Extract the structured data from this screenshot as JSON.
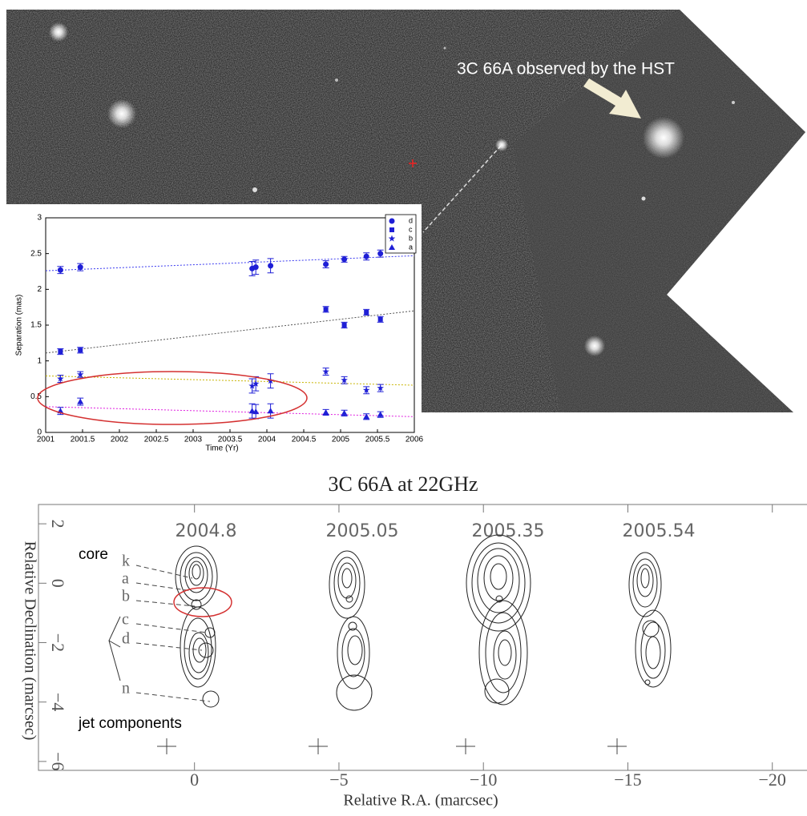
{
  "image": {
    "annotation": "3C 66A observed by the HST"
  },
  "chart_data": [
    {
      "type": "scatter",
      "xlabel": "Time (Yr)",
      "ylabel": "Separation (mas)",
      "xlim": [
        2001,
        2006
      ],
      "xticks": [
        2001,
        2001.5,
        2002,
        2002.5,
        2003,
        2003.5,
        2004,
        2004.5,
        2005,
        2005.5,
        2006
      ],
      "ylim": [
        0,
        3
      ],
      "yticks": [
        0,
        0.5,
        1,
        1.5,
        2,
        2.5,
        3
      ],
      "series": [
        {
          "name": "d",
          "marker": "circle",
          "color": "#1f1fd6",
          "fit_color": "#3b3bf0",
          "x": [
            2001.2,
            2001.47,
            2003.8,
            2003.85,
            2004.05,
            2004.8,
            2005.05,
            2005.35,
            2005.54
          ],
          "values": [
            2.27,
            2.31,
            2.29,
            2.31,
            2.33,
            2.35,
            2.42,
            2.46,
            2.5
          ],
          "errors": [
            0.05,
            0.05,
            0.1,
            0.1,
            0.1,
            0.05,
            0.04,
            0.05,
            0.05
          ],
          "fit": [
            2.26,
            2.47
          ]
        },
        {
          "name": "c",
          "marker": "square",
          "color": "#1f1fd6",
          "fit_color": "#555555",
          "x": [
            2001.2,
            2001.47,
            2004.8,
            2005.05,
            2005.35,
            2005.54
          ],
          "values": [
            1.13,
            1.15,
            1.72,
            1.5,
            1.68,
            1.58
          ],
          "errors": [
            0.04,
            0.04,
            0.04,
            0.04,
            0.04,
            0.04
          ],
          "fit": [
            1.11,
            1.7
          ]
        },
        {
          "name": "b",
          "marker": "star",
          "color": "#1f1fd6",
          "fit_color": "#c8b400",
          "x": [
            2001.2,
            2001.47,
            2003.8,
            2003.85,
            2004.05,
            2004.8,
            2005.05,
            2005.35,
            2005.54
          ],
          "values": [
            0.75,
            0.81,
            0.65,
            0.68,
            0.72,
            0.85,
            0.73,
            0.59,
            0.62
          ],
          "errors": [
            0.05,
            0.04,
            0.1,
            0.1,
            0.1,
            0.05,
            0.05,
            0.05,
            0.05
          ],
          "fit": [
            0.79,
            0.66
          ]
        },
        {
          "name": "a",
          "marker": "triangle",
          "color": "#1f1fd6",
          "fit_color": "#e020e0",
          "x": [
            2001.2,
            2001.47,
            2003.8,
            2003.85,
            2004.05,
            2004.8,
            2005.05,
            2005.35,
            2005.54
          ],
          "values": [
            0.3,
            0.43,
            0.3,
            0.29,
            0.3,
            0.28,
            0.27,
            0.22,
            0.25
          ],
          "errors": [
            0.05,
            0.05,
            0.1,
            0.1,
            0.1,
            0.04,
            0.04,
            0.04,
            0.04
          ],
          "fit": [
            0.36,
            0.22
          ]
        }
      ]
    },
    {
      "type": "contour",
      "title": "3C 66A at 22GHz",
      "xlabel": "Relative R.A. (marcsec)",
      "ylabel": "Relative Declination (marcsec)",
      "xlim": [
        5.4,
        -21.2
      ],
      "xticks": [
        0,
        {
          "value": -5,
          "label": "−5"
        },
        {
          "value": -10,
          "label": "−10"
        },
        {
          "value": -15,
          "label": "−15"
        },
        {
          "value": -20,
          "label": "−20"
        }
      ],
      "ylim": [
        -6.3,
        2.65
      ],
      "yticks": [
        2,
        0,
        {
          "value": -2,
          "label": "−2"
        },
        {
          "value": -4,
          "label": "−4"
        },
        {
          "value": -6,
          "label": "−6"
        }
      ],
      "epochs": [
        "2004.8",
        "2005.05",
        "2005.35",
        "2005.54"
      ],
      "core_label": "core",
      "jet_label": "jet components",
      "component_labels": [
        "k",
        "a",
        "b",
        "c",
        "d",
        "n"
      ]
    }
  ]
}
